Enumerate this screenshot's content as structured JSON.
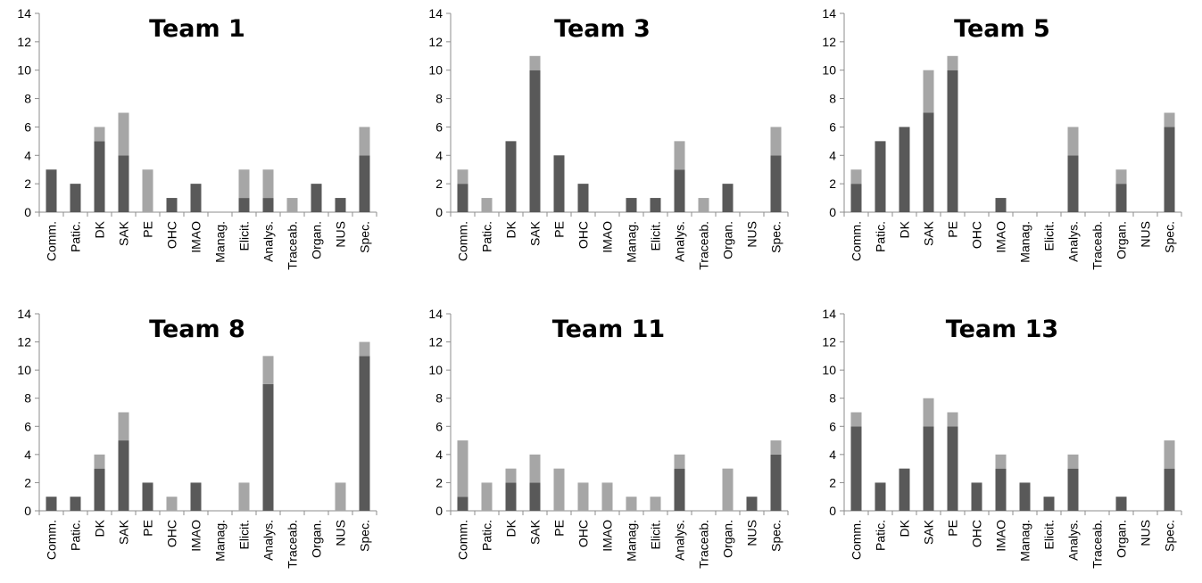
{
  "chart_data": [
    {
      "type": "bar",
      "stacked": true,
      "title": "Team 1",
      "categories": [
        "Comm.",
        "Patic.",
        "DK",
        "SAK",
        "PE",
        "OHC",
        "IMAO",
        "Manag.",
        "Elicit.",
        "Analys.",
        "Traceab.",
        "Organ.",
        "NUS",
        "Spec."
      ],
      "ylim": [
        0,
        14
      ],
      "yticks": [
        0,
        2,
        4,
        6,
        8,
        10,
        12,
        14
      ],
      "grid": false,
      "legend": "none",
      "series": [
        {
          "values": [
            3,
            2,
            5,
            4,
            0,
            1,
            2,
            0,
            1,
            1,
            0,
            2,
            1,
            4
          ],
          "color": "#595959"
        },
        {
          "values": [
            0,
            0,
            1,
            3,
            3,
            0,
            0,
            0,
            2,
            2,
            1,
            0,
            0,
            2
          ],
          "color": "#a6a6a6"
        }
      ]
    },
    {
      "type": "bar",
      "stacked": true,
      "title": "Team 3",
      "categories": [
        "Comm.",
        "Patic.",
        "DK",
        "SAK",
        "PE",
        "OHC",
        "IMAO",
        "Manag.",
        "Elicit.",
        "Analys.",
        "Traceab.",
        "Organ.",
        "NUS",
        "Spec."
      ],
      "ylim": [
        0,
        14
      ],
      "yticks": [
        0,
        2,
        4,
        6,
        8,
        10,
        12,
        14
      ],
      "grid": false,
      "legend": "none",
      "series": [
        {
          "values": [
            2,
            0,
            5,
            10,
            4,
            2,
            0,
            1,
            1,
            3,
            0,
            2,
            0,
            4
          ],
          "color": "#595959"
        },
        {
          "values": [
            1,
            1,
            0,
            1,
            0,
            0,
            0,
            0,
            0,
            2,
            1,
            0,
            0,
            2
          ],
          "color": "#a6a6a6"
        }
      ]
    },
    {
      "type": "bar",
      "stacked": true,
      "title": "Team 5",
      "categories": [
        "Comm.",
        "Patic.",
        "DK",
        "SAK",
        "PE",
        "OHC",
        "IMAO",
        "Manag.",
        "Elicit.",
        "Analys.",
        "Traceab.",
        "Organ.",
        "NUS",
        "Spec."
      ],
      "ylim": [
        0,
        14
      ],
      "yticks": [
        0,
        2,
        4,
        6,
        8,
        10,
        12,
        14
      ],
      "grid": false,
      "legend": "none",
      "series": [
        {
          "values": [
            2,
            5,
            6,
            7,
            10,
            0,
            1,
            0,
            0,
            4,
            0,
            2,
            0,
            6
          ],
          "color": "#595959"
        },
        {
          "values": [
            1,
            0,
            0,
            3,
            1,
            0,
            0,
            0,
            0,
            2,
            0,
            1,
            0,
            1
          ],
          "color": "#a6a6a6"
        }
      ]
    },
    {
      "type": "bar",
      "stacked": true,
      "title": "Team 8",
      "categories": [
        "Comm.",
        "Patic.",
        "DK",
        "SAK",
        "PE",
        "OHC",
        "IMAO",
        "Manag.",
        "Elicit.",
        "Analys.",
        "Traceab.",
        "Organ.",
        "NUS",
        "Spec."
      ],
      "ylim": [
        0,
        14
      ],
      "yticks": [
        0,
        2,
        4,
        6,
        8,
        10,
        12,
        14
      ],
      "grid": false,
      "legend": "none",
      "series": [
        {
          "values": [
            1,
            1,
            3,
            5,
            2,
            0,
            2,
            0,
            0,
            9,
            0,
            0,
            0,
            11
          ],
          "color": "#595959"
        },
        {
          "values": [
            0,
            0,
            1,
            2,
            0,
            1,
            0,
            0,
            2,
            2,
            0,
            0,
            2,
            1
          ],
          "color": "#a6a6a6"
        }
      ]
    },
    {
      "type": "bar",
      "stacked": true,
      "title": "Team 11",
      "categories": [
        "Comm.",
        "Patic.",
        "DK",
        "SAK",
        "PE",
        "OHC",
        "IMAO",
        "Manag.",
        "Elicit.",
        "Analys.",
        "Traceab.",
        "Organ.",
        "NUS",
        "Spec."
      ],
      "ylim": [
        0,
        14
      ],
      "yticks": [
        0,
        2,
        4,
        6,
        8,
        10,
        12,
        14
      ],
      "grid": false,
      "legend": "none",
      "series": [
        {
          "values": [
            1,
            0,
            2,
            2,
            0,
            0,
            0,
            0,
            0,
            3,
            0,
            0,
            1,
            4
          ],
          "color": "#595959"
        },
        {
          "values": [
            4,
            2,
            1,
            2,
            3,
            2,
            2,
            1,
            1,
            1,
            0,
            3,
            0,
            1
          ],
          "color": "#a6a6a6"
        }
      ]
    },
    {
      "type": "bar",
      "stacked": true,
      "title": "Team 13",
      "categories": [
        "Comm.",
        "Patic.",
        "DK",
        "SAK",
        "PE",
        "OHC",
        "IMAO",
        "Manag.",
        "Elicit.",
        "Analys.",
        "Traceab.",
        "Organ.",
        "NUS",
        "Spec."
      ],
      "ylim": [
        0,
        14
      ],
      "yticks": [
        0,
        2,
        4,
        6,
        8,
        10,
        12,
        14
      ],
      "grid": false,
      "legend": "none",
      "series": [
        {
          "values": [
            6,
            2,
            3,
            6,
            6,
            2,
            3,
            2,
            1,
            3,
            0,
            1,
            0,
            3
          ],
          "color": "#595959"
        },
        {
          "values": [
            1,
            0,
            0,
            2,
            1,
            0,
            1,
            0,
            0,
            1,
            0,
            0,
            0,
            2
          ],
          "color": "#a6a6a6"
        }
      ]
    }
  ]
}
